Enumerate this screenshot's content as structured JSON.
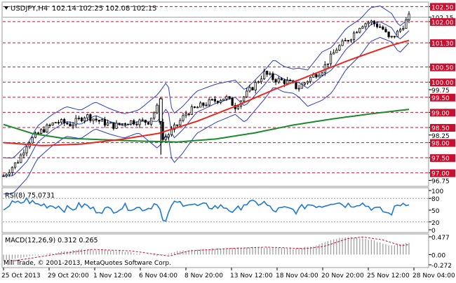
{
  "chart_data": [
    {
      "type": "candlestick",
      "symbol_header": "USDJPY,H4",
      "ohlc_header": "102.14 102.25 102.08 102.15",
      "ylim": [
        96.6,
        102.6
      ],
      "price_levels": [
        "102.50",
        "102.15",
        "102.00",
        "101.30",
        "100.50",
        "100.00",
        "99.75",
        "99.50",
        "99.00",
        "98.50",
        "98.25",
        "98.00",
        "97.50",
        "97.00",
        "96.75"
      ],
      "highlighted_levels": [
        "102.50",
        "102.00",
        "101.30",
        "100.50",
        "100.00",
        "99.50",
        "99.00",
        "98.50",
        "98.00",
        "97.50",
        "97.00"
      ],
      "current_price": 102.15,
      "x_labels": [
        "25 Oct 2013",
        "29 Oct 20:00",
        "1 Nov 12:00",
        "6 Nov 04:00",
        "8 Nov 20:00",
        "13 Nov 12:00",
        "18 Nov 04:00",
        "20 Nov 20:00",
        "25 Nov 12:00",
        "28 Nov 04:00"
      ],
      "ma_red_anchors": [
        [
          0,
          98.0
        ],
        [
          40,
          97.9
        ],
        [
          80,
          97.95
        ],
        [
          120,
          98.1
        ],
        [
          160,
          98.3
        ],
        [
          200,
          98.7
        ],
        [
          240,
          99.2
        ],
        [
          280,
          99.75
        ],
        [
          320,
          100.25
        ],
        [
          360,
          100.75
        ],
        [
          400,
          101.2
        ],
        [
          420,
          101.38
        ]
      ],
      "ma_green_anchors": [
        [
          0,
          98.6
        ],
        [
          30,
          98.3
        ],
        [
          60,
          98.15
        ],
        [
          100,
          98.1
        ],
        [
          140,
          98.05
        ],
        [
          180,
          98.02
        ],
        [
          220,
          98.12
        ],
        [
          260,
          98.32
        ],
        [
          300,
          98.58
        ],
        [
          340,
          98.78
        ],
        [
          380,
          98.95
        ],
        [
          420,
          99.1
        ]
      ],
      "price_anchors": [
        [
          0,
          96.9
        ],
        [
          15,
          97.4
        ],
        [
          25,
          98.0
        ],
        [
          40,
          98.4
        ],
        [
          55,
          98.7
        ],
        [
          70,
          98.6
        ],
        [
          85,
          98.9
        ],
        [
          100,
          98.7
        ],
        [
          115,
          98.55
        ],
        [
          130,
          98.7
        ],
        [
          150,
          98.7
        ],
        [
          160,
          99.2
        ],
        [
          165,
          98.1
        ],
        [
          175,
          98.4
        ],
        [
          190,
          99.0
        ],
        [
          210,
          99.3
        ],
        [
          230,
          99.5
        ],
        [
          240,
          99.2
        ],
        [
          260,
          99.9
        ],
        [
          270,
          100.3
        ],
        [
          280,
          100.1
        ],
        [
          295,
          100.0
        ],
        [
          305,
          99.8
        ],
        [
          320,
          100.2
        ],
        [
          330,
          100.4
        ],
        [
          345,
          101.1
        ],
        [
          360,
          101.5
        ],
        [
          370,
          101.9
        ],
        [
          380,
          102.0
        ],
        [
          392,
          101.8
        ],
        [
          400,
          101.4
        ],
        [
          410,
          101.7
        ],
        [
          420,
          102.15
        ]
      ],
      "bb_width_anchors": [
        [
          0,
          1.0
        ],
        [
          60,
          0.8
        ],
        [
          140,
          0.55
        ],
        [
          160,
          1.6
        ],
        [
          200,
          1.2
        ],
        [
          260,
          0.8
        ],
        [
          300,
          0.6
        ],
        [
          330,
          1.4
        ],
        [
          370,
          1.0
        ],
        [
          420,
          0.6
        ]
      ],
      "series": [
        {
          "name": "MA",
          "color": "#e8271e"
        },
        {
          "name": "MA",
          "color": "#1a8a2a"
        }
      ]
    },
    {
      "type": "line",
      "label": "RSI(8) 75.0731",
      "ylim": [
        0,
        100
      ],
      "levels": [
        "100",
        "80",
        "50",
        "20",
        "0"
      ],
      "color": "#1e78d6"
    },
    {
      "type": "histogram",
      "label": "MACD(12,26,9) 0.312 0.265",
      "levels": [
        "0.477",
        "0.00",
        "-0.272"
      ],
      "anchors": [
        [
          0,
          -0.16
        ],
        [
          40,
          0.0
        ],
        [
          80,
          0.14
        ],
        [
          120,
          0.1
        ],
        [
          160,
          -0.04
        ],
        [
          180,
          0.1
        ],
        [
          220,
          0.16
        ],
        [
          260,
          0.2
        ],
        [
          300,
          0.16
        ],
        [
          320,
          0.22
        ],
        [
          345,
          0.43
        ],
        [
          360,
          0.47
        ],
        [
          380,
          0.4
        ],
        [
          400,
          0.24
        ],
        [
          420,
          0.31
        ]
      ]
    }
  ],
  "footer": {
    "copyright": "Mill Trade, © 2001-2013, MetaQuotes Software Corp."
  }
}
